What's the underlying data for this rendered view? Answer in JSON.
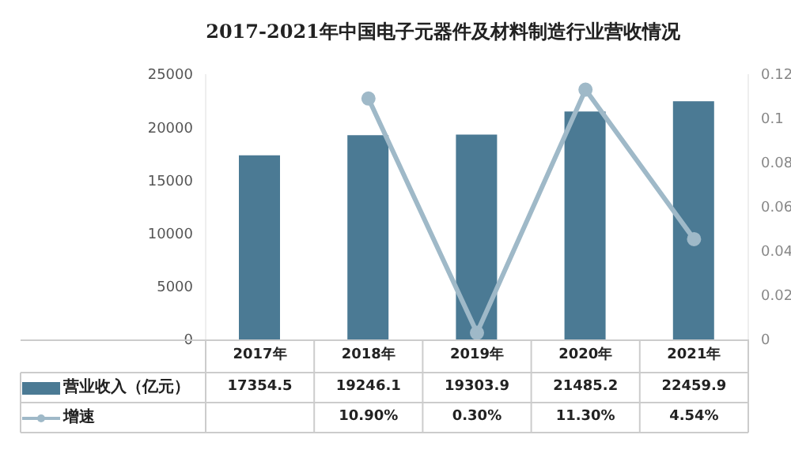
{
  "chart_data": {
    "type": "bar",
    "title": "2017-2021年中国电子元器件及材料制造行业营收情况",
    "categories": [
      "2017年",
      "2018年",
      "2019年",
      "2020年",
      "2021年"
    ],
    "series": [
      {
        "name": "营业收入（亿元）",
        "color": "#4b7a94",
        "values": [
          17354.5,
          19246.1,
          19303.9,
          21485.2,
          22459.9
        ],
        "value_labels": [
          "17354.5",
          "19246.1",
          "19303.9",
          "21485.2",
          "22459.9"
        ]
      },
      {
        "name": "增速",
        "type": "line",
        "axis": "y2",
        "color": "#9fb9c8",
        "values": [
          null,
          0.109,
          0.003,
          0.113,
          0.0454
        ],
        "value_labels": [
          null,
          "10.90%",
          "0.30%",
          "11.30%",
          "4.54%"
        ]
      }
    ],
    "ylim": [
      0,
      25000
    ],
    "yticks": [
      0,
      5000,
      10000,
      15000,
      20000,
      25000
    ],
    "y2lim": [
      0,
      0.12
    ],
    "y2ticks": [
      0,
      0.02,
      0.04,
      0.06,
      0.08,
      0.1,
      0.12
    ],
    "marker": "circle",
    "grid": false,
    "legend": "bottom"
  }
}
